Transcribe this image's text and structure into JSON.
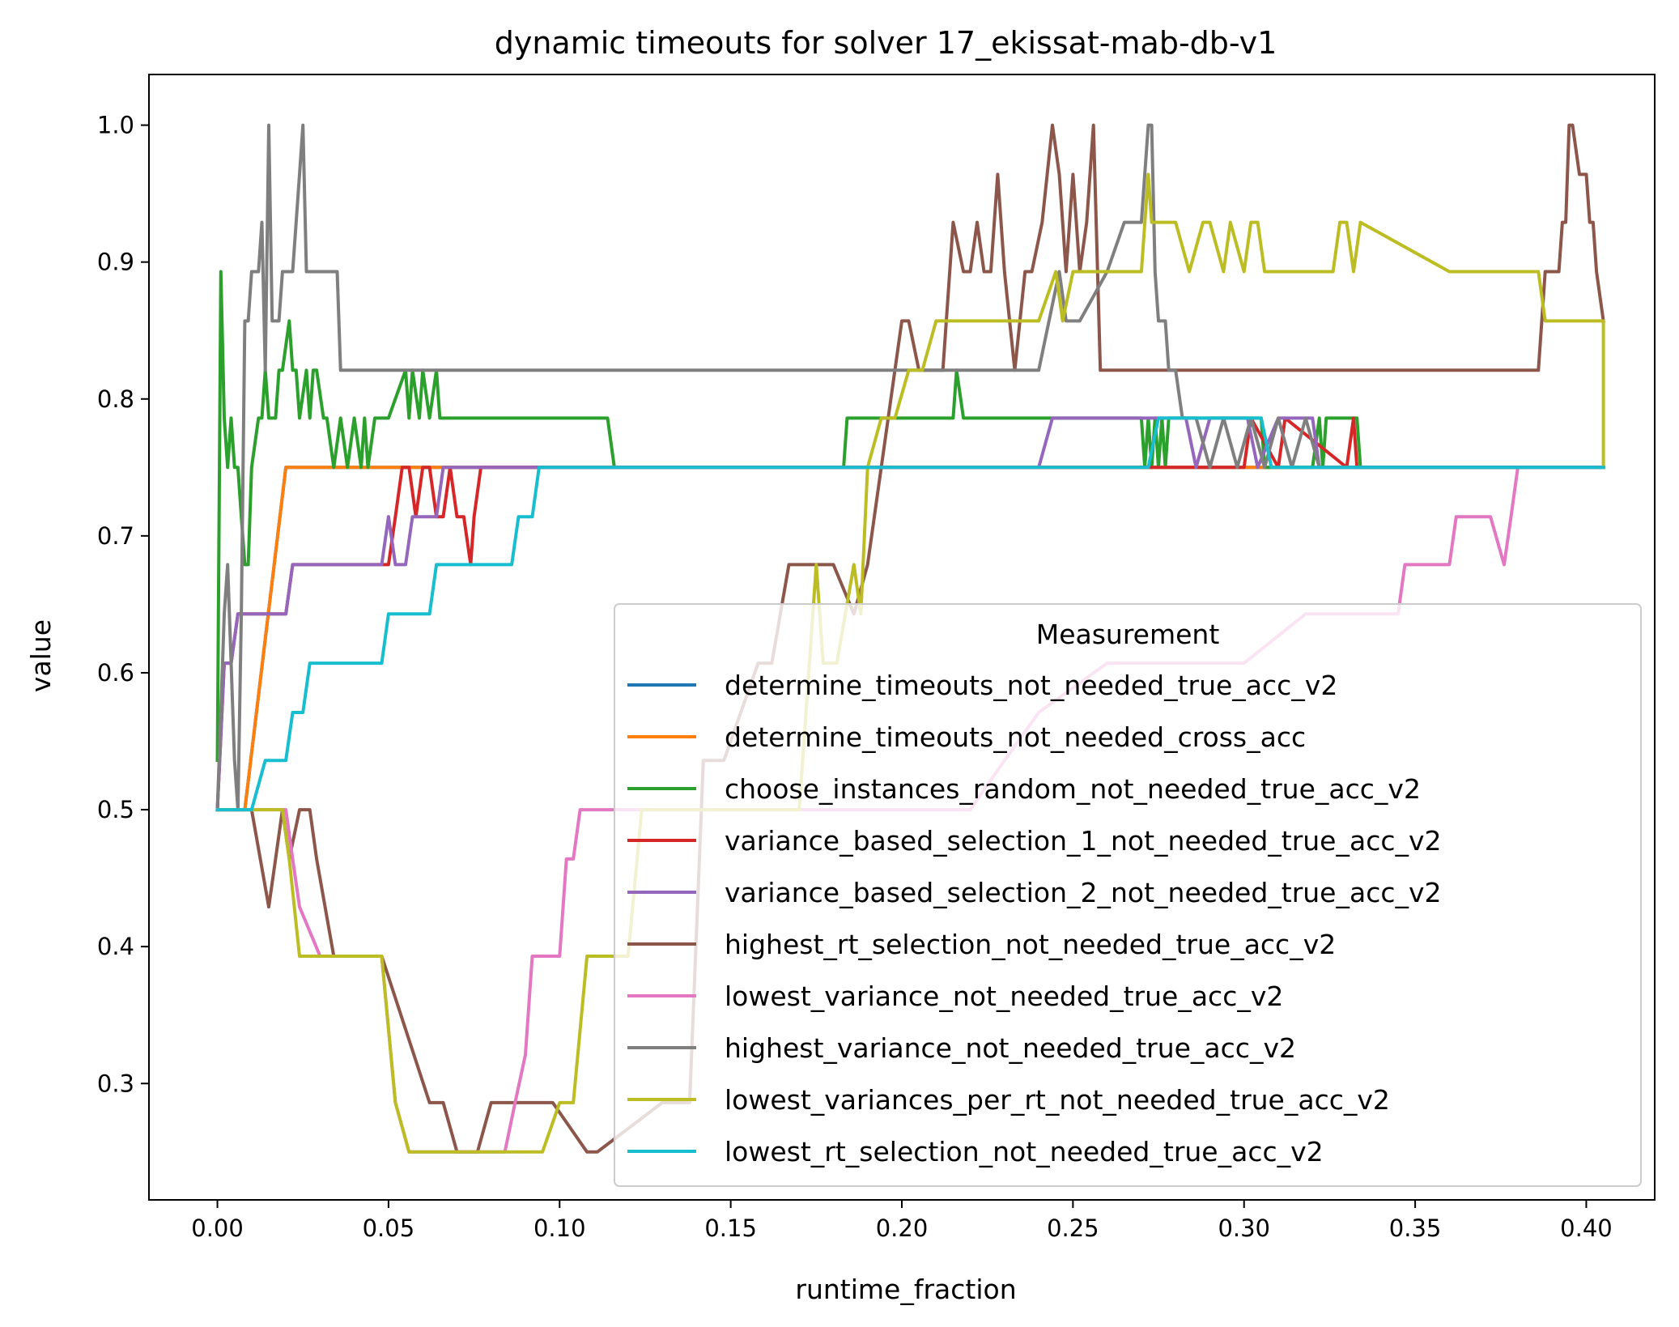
{
  "chart_data": {
    "type": "line",
    "title": "dynamic timeouts for solver 17_ekissat-mab-db-v1",
    "xlabel": "runtime_fraction",
    "ylabel": "value",
    "xlim": [
      -0.02,
      0.42
    ],
    "ylim": [
      0.215,
      1.037
    ],
    "xticks": [
      0.0,
      0.05,
      0.1,
      0.15,
      0.2,
      0.25,
      0.3,
      0.35,
      0.4
    ],
    "xtick_labels": [
      "0.00",
      "0.05",
      "0.10",
      "0.15",
      "0.20",
      "0.25",
      "0.30",
      "0.35",
      "0.40"
    ],
    "yticks": [
      0.3,
      0.4,
      0.5,
      0.6,
      0.7,
      0.8,
      0.9,
      1.0
    ],
    "ytick_labels": [
      "0.3",
      "0.4",
      "0.5",
      "0.6",
      "0.7",
      "0.8",
      "0.9",
      "1.0"
    ],
    "legend": {
      "title": "Measurement",
      "placement": "lower-right"
    },
    "series": [
      {
        "name": "determine_timeouts_not_needed_true_acc_v2",
        "color": "#1f77b4",
        "x": [
          0.0,
          0.002,
          0.008,
          0.02,
          0.07,
          0.09,
          0.405
        ],
        "y": [
          0.5,
          0.5,
          0.5,
          0.75,
          0.75,
          0.75,
          0.75
        ]
      },
      {
        "name": "determine_timeouts_not_needed_cross_acc",
        "color": "#ff7f0e",
        "x": [
          0.0,
          0.002,
          0.008,
          0.02,
          0.07,
          0.09,
          0.405
        ],
        "y": [
          0.5,
          0.5,
          0.5,
          0.75,
          0.75,
          0.75,
          0.75
        ]
      },
      {
        "name": "choose_instances_random_not_needed_true_acc_v2",
        "color": "#2ca02c",
        "x": [
          0.0,
          0.001,
          0.002,
          0.003,
          0.004,
          0.005,
          0.006,
          0.007,
          0.008,
          0.009,
          0.01,
          0.012,
          0.013,
          0.014,
          0.015,
          0.017,
          0.018,
          0.019,
          0.021,
          0.022,
          0.023,
          0.024,
          0.026,
          0.027,
          0.028,
          0.029,
          0.031,
          0.032,
          0.034,
          0.036,
          0.038,
          0.04,
          0.042,
          0.043,
          0.044,
          0.046,
          0.048,
          0.05,
          0.055,
          0.056,
          0.057,
          0.059,
          0.06,
          0.062,
          0.064,
          0.065,
          0.066,
          0.068,
          0.07,
          0.071,
          0.072,
          0.073,
          0.08,
          0.1,
          0.114,
          0.116,
          0.15,
          0.183,
          0.184,
          0.21,
          0.215,
          0.216,
          0.218,
          0.22,
          0.24,
          0.26,
          0.27,
          0.271,
          0.272,
          0.273,
          0.274,
          0.275,
          0.276,
          0.277,
          0.278,
          0.29,
          0.305,
          0.306,
          0.31,
          0.32,
          0.322,
          0.323,
          0.324,
          0.325,
          0.333,
          0.334,
          0.405
        ],
        "y": [
          0.536,
          0.893,
          0.786,
          0.75,
          0.786,
          0.75,
          0.75,
          0.714,
          0.679,
          0.679,
          0.75,
          0.786,
          0.786,
          0.821,
          0.786,
          0.786,
          0.821,
          0.821,
          0.857,
          0.821,
          0.821,
          0.786,
          0.821,
          0.786,
          0.821,
          0.821,
          0.786,
          0.786,
          0.75,
          0.786,
          0.75,
          0.786,
          0.75,
          0.786,
          0.75,
          0.786,
          0.786,
          0.786,
          0.821,
          0.786,
          0.821,
          0.786,
          0.821,
          0.786,
          0.821,
          0.786,
          0.786,
          0.786,
          0.786,
          0.786,
          0.786,
          0.786,
          0.786,
          0.786,
          0.786,
          0.75,
          0.75,
          0.75,
          0.786,
          0.786,
          0.786,
          0.821,
          0.786,
          0.786,
          0.786,
          0.786,
          0.786,
          0.75,
          0.786,
          0.75,
          0.786,
          0.75,
          0.786,
          0.75,
          0.786,
          0.786,
          0.786,
          0.75,
          0.75,
          0.75,
          0.786,
          0.75,
          0.786,
          0.786,
          0.786,
          0.75,
          0.75
        ]
      },
      {
        "name": "variance_based_selection_1_not_needed_true_acc_v2",
        "color": "#d62728",
        "x": [
          0.0,
          0.002,
          0.004,
          0.006,
          0.008,
          0.02,
          0.022,
          0.045,
          0.05,
          0.052,
          0.054,
          0.056,
          0.058,
          0.06,
          0.062,
          0.064,
          0.066,
          0.068,
          0.07,
          0.072,
          0.074,
          0.075,
          0.077,
          0.08,
          0.1,
          0.275,
          0.3,
          0.302,
          0.31,
          0.312,
          0.33,
          0.332,
          0.333,
          0.405
        ],
        "y": [
          0.5,
          0.607,
          0.607,
          0.643,
          0.643,
          0.643,
          0.679,
          0.679,
          0.679,
          0.714,
          0.75,
          0.75,
          0.714,
          0.75,
          0.75,
          0.714,
          0.714,
          0.75,
          0.714,
          0.714,
          0.679,
          0.714,
          0.75,
          0.75,
          0.75,
          0.75,
          0.75,
          0.786,
          0.75,
          0.786,
          0.75,
          0.786,
          0.75,
          0.75
        ]
      },
      {
        "name": "variance_based_selection_2_not_needed_true_acc_v2",
        "color": "#9467bd",
        "x": [
          0.0,
          0.002,
          0.004,
          0.006,
          0.008,
          0.02,
          0.022,
          0.048,
          0.05,
          0.052,
          0.055,
          0.057,
          0.06,
          0.062,
          0.064,
          0.066,
          0.068,
          0.07,
          0.08,
          0.1,
          0.24,
          0.244,
          0.26,
          0.27,
          0.28,
          0.283,
          0.286,
          0.29,
          0.292,
          0.3,
          0.301,
          0.304,
          0.31,
          0.32,
          0.322,
          0.323,
          0.405
        ],
        "y": [
          0.5,
          0.607,
          0.607,
          0.643,
          0.643,
          0.643,
          0.679,
          0.679,
          0.714,
          0.679,
          0.679,
          0.714,
          0.714,
          0.714,
          0.714,
          0.75,
          0.75,
          0.75,
          0.75,
          0.75,
          0.75,
          0.786,
          0.786,
          0.786,
          0.786,
          0.786,
          0.75,
          0.786,
          0.786,
          0.786,
          0.786,
          0.75,
          0.786,
          0.786,
          0.75,
          0.75,
          0.75
        ]
      },
      {
        "name": "highest_rt_selection_not_needed_true_acc_v2",
        "color": "#8c564b",
        "x": [
          0.0,
          0.01,
          0.015,
          0.017,
          0.019,
          0.021,
          0.024,
          0.027,
          0.029,
          0.034,
          0.048,
          0.062,
          0.066,
          0.07,
          0.072,
          0.076,
          0.08,
          0.088,
          0.098,
          0.108,
          0.111,
          0.13,
          0.134,
          0.138,
          0.142,
          0.148,
          0.158,
          0.162,
          0.167,
          0.172,
          0.174,
          0.18,
          0.186,
          0.19,
          0.2,
          0.202,
          0.205,
          0.208,
          0.212,
          0.215,
          0.218,
          0.22,
          0.222,
          0.224,
          0.226,
          0.228,
          0.23,
          0.233,
          0.236,
          0.238,
          0.241,
          0.244,
          0.246,
          0.248,
          0.25,
          0.252,
          0.254,
          0.256,
          0.258,
          0.26,
          0.27,
          0.3,
          0.35,
          0.386,
          0.388,
          0.392,
          0.393,
          0.394,
          0.395,
          0.396,
          0.398,
          0.4,
          0.401,
          0.402,
          0.403,
          0.405
        ],
        "y": [
          0.5,
          0.5,
          0.429,
          0.464,
          0.5,
          0.464,
          0.5,
          0.5,
          0.464,
          0.393,
          0.393,
          0.286,
          0.286,
          0.25,
          0.25,
          0.25,
          0.286,
          0.286,
          0.286,
          0.25,
          0.25,
          0.286,
          0.286,
          0.286,
          0.536,
          0.536,
          0.607,
          0.607,
          0.679,
          0.679,
          0.679,
          0.679,
          0.643,
          0.679,
          0.857,
          0.857,
          0.821,
          0.821,
          0.821,
          0.929,
          0.893,
          0.893,
          0.929,
          0.893,
          0.893,
          0.964,
          0.893,
          0.821,
          0.893,
          0.893,
          0.929,
          1.0,
          0.964,
          0.893,
          0.964,
          0.893,
          0.929,
          1.0,
          0.821,
          0.821,
          0.821,
          0.821,
          0.821,
          0.821,
          0.893,
          0.893,
          0.929,
          0.929,
          1.0,
          1.0,
          0.964,
          0.964,
          0.929,
          0.929,
          0.893,
          0.857
        ]
      },
      {
        "name": "lowest_variance_not_needed_true_acc_v2",
        "color": "#e377c2",
        "x": [
          0.0,
          0.01,
          0.015,
          0.017,
          0.02,
          0.022,
          0.024,
          0.03,
          0.034,
          0.048,
          0.052,
          0.056,
          0.07,
          0.084,
          0.087,
          0.09,
          0.092,
          0.1,
          0.102,
          0.104,
          0.106,
          0.108,
          0.118,
          0.13,
          0.14,
          0.16,
          0.17,
          0.2,
          0.22,
          0.23,
          0.24,
          0.26,
          0.28,
          0.3,
          0.318,
          0.345,
          0.347,
          0.36,
          0.362,
          0.37,
          0.372,
          0.376,
          0.378,
          0.38,
          0.405
        ],
        "y": [
          0.5,
          0.5,
          0.5,
          0.5,
          0.5,
          0.464,
          0.429,
          0.393,
          0.393,
          0.393,
          0.286,
          0.25,
          0.25,
          0.25,
          0.286,
          0.321,
          0.393,
          0.393,
          0.464,
          0.464,
          0.5,
          0.5,
          0.5,
          0.5,
          0.5,
          0.5,
          0.5,
          0.5,
          0.5,
          0.536,
          0.571,
          0.607,
          0.607,
          0.607,
          0.643,
          0.643,
          0.679,
          0.679,
          0.714,
          0.714,
          0.714,
          0.679,
          0.714,
          0.75,
          0.75
        ]
      },
      {
        "name": "highest_variance_not_needed_true_acc_v2",
        "color": "#7f7f7f",
        "x": [
          0.0,
          0.001,
          0.002,
          0.003,
          0.004,
          0.005,
          0.006,
          0.007,
          0.008,
          0.009,
          0.01,
          0.011,
          0.012,
          0.013,
          0.014,
          0.015,
          0.016,
          0.017,
          0.018,
          0.019,
          0.02,
          0.022,
          0.024,
          0.025,
          0.026,
          0.03,
          0.035,
          0.036,
          0.04,
          0.1,
          0.2,
          0.24,
          0.243,
          0.246,
          0.248,
          0.25,
          0.252,
          0.26,
          0.265,
          0.27,
          0.272,
          0.273,
          0.274,
          0.275,
          0.276,
          0.277,
          0.278,
          0.28,
          0.282,
          0.286,
          0.29,
          0.294,
          0.298,
          0.302,
          0.306,
          0.31,
          0.314,
          0.318,
          0.322,
          0.405
        ],
        "y": [
          0.5,
          0.571,
          0.643,
          0.679,
          0.607,
          0.536,
          0.5,
          0.643,
          0.857,
          0.857,
          0.893,
          0.893,
          0.893,
          0.929,
          0.821,
          1.0,
          0.857,
          0.857,
          0.857,
          0.893,
          0.893,
          0.893,
          0.964,
          1.0,
          0.893,
          0.893,
          0.893,
          0.821,
          0.821,
          0.821,
          0.821,
          0.821,
          0.857,
          0.893,
          0.857,
          0.857,
          0.857,
          0.893,
          0.929,
          0.929,
          1.0,
          1.0,
          0.893,
          0.857,
          0.857,
          0.857,
          0.821,
          0.821,
          0.786,
          0.786,
          0.75,
          0.786,
          0.75,
          0.786,
          0.75,
          0.786,
          0.75,
          0.786,
          0.75,
          0.75
        ]
      },
      {
        "name": "lowest_variances_per_rt_not_needed_true_acc_v2",
        "color": "#bcbd22",
        "x": [
          0.0,
          0.01,
          0.015,
          0.017,
          0.019,
          0.021,
          0.024,
          0.034,
          0.048,
          0.052,
          0.056,
          0.07,
          0.09,
          0.095,
          0.1,
          0.104,
          0.108,
          0.112,
          0.12,
          0.124,
          0.128,
          0.134,
          0.15,
          0.16,
          0.17,
          0.175,
          0.177,
          0.179,
          0.181,
          0.186,
          0.188,
          0.19,
          0.194,
          0.198,
          0.202,
          0.206,
          0.21,
          0.212,
          0.214,
          0.216,
          0.22,
          0.225,
          0.23,
          0.24,
          0.245,
          0.247,
          0.25,
          0.27,
          0.272,
          0.273,
          0.274,
          0.28,
          0.284,
          0.288,
          0.29,
          0.294,
          0.296,
          0.3,
          0.302,
          0.304,
          0.306,
          0.31,
          0.326,
          0.328,
          0.33,
          0.332,
          0.334,
          0.36,
          0.38,
          0.386,
          0.388,
          0.395,
          0.405,
          0.405
        ],
        "y": [
          0.5,
          0.5,
          0.5,
          0.5,
          0.5,
          0.464,
          0.393,
          0.393,
          0.393,
          0.286,
          0.25,
          0.25,
          0.25,
          0.25,
          0.286,
          0.286,
          0.393,
          0.393,
          0.393,
          0.5,
          0.5,
          0.5,
          0.5,
          0.5,
          0.5,
          0.679,
          0.607,
          0.607,
          0.607,
          0.679,
          0.643,
          0.75,
          0.786,
          0.786,
          0.821,
          0.821,
          0.857,
          0.857,
          0.857,
          0.857,
          0.857,
          0.857,
          0.857,
          0.857,
          0.893,
          0.857,
          0.893,
          0.893,
          0.964,
          0.929,
          0.929,
          0.929,
          0.893,
          0.929,
          0.929,
          0.893,
          0.929,
          0.893,
          0.929,
          0.929,
          0.893,
          0.893,
          0.893,
          0.929,
          0.929,
          0.893,
          0.929,
          0.893,
          0.893,
          0.893,
          0.857,
          0.857,
          0.857,
          0.75
        ]
      },
      {
        "name": "lowest_rt_selection_not_needed_true_acc_v2",
        "color": "#17becf",
        "x": [
          0.0,
          0.01,
          0.014,
          0.02,
          0.022,
          0.025,
          0.027,
          0.04,
          0.048,
          0.05,
          0.062,
          0.064,
          0.07,
          0.08,
          0.086,
          0.088,
          0.09,
          0.092,
          0.094,
          0.27,
          0.272,
          0.275,
          0.28,
          0.29,
          0.3,
          0.305,
          0.308,
          0.405
        ],
        "y": [
          0.5,
          0.5,
          0.536,
          0.536,
          0.571,
          0.571,
          0.607,
          0.607,
          0.607,
          0.643,
          0.643,
          0.679,
          0.679,
          0.679,
          0.679,
          0.714,
          0.714,
          0.714,
          0.75,
          0.75,
          0.75,
          0.786,
          0.786,
          0.786,
          0.786,
          0.786,
          0.75,
          0.75
        ]
      }
    ]
  }
}
